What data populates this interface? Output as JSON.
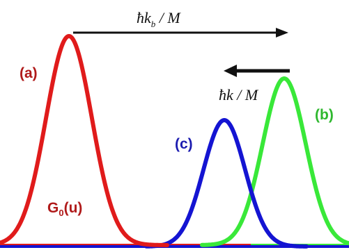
{
  "colors": {
    "red": "#e01b1b",
    "green": "#39e839",
    "blue": "#1414d2",
    "label_red": "#b01a1a",
    "label_green": "#2fb82f",
    "label_blue": "#1c1cb0",
    "arrow": "#111111"
  },
  "top_arrow": {
    "text_main": "ħk",
    "text_sub": "b",
    "text_tail": " / M"
  },
  "mid_arrow": {
    "text": "ħk / M"
  },
  "labels": {
    "a": "(a)",
    "b": "(b)",
    "c": "(c)",
    "g0_main": "G",
    "g0_sub": "0",
    "g0_tail": "(u)"
  }
}
